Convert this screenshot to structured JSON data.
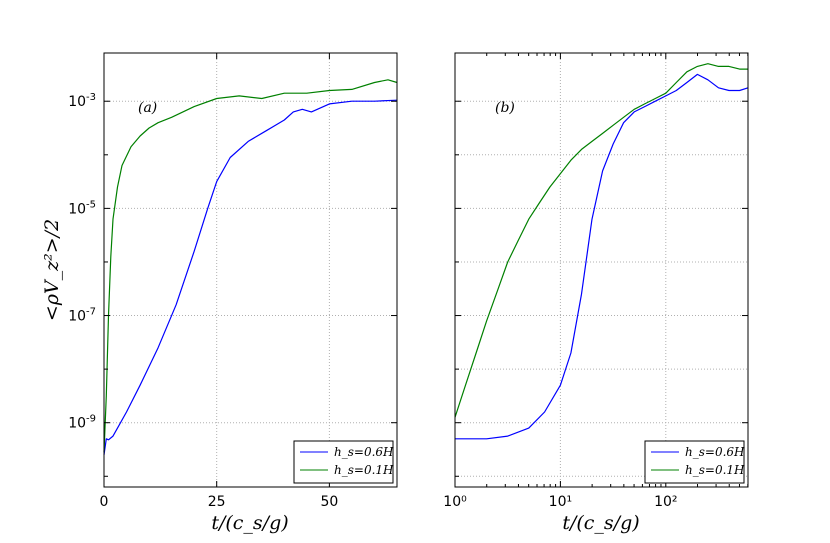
{
  "chart_data": [
    {
      "type": "line",
      "panel_label": "(a)",
      "xscale": "linear",
      "yscale": "log",
      "xlabel": "t/(c_s/g)",
      "ylabel": "<ρV_z²>/2",
      "xlim": [
        0,
        65
      ],
      "ylim_exp": [
        -10.2,
        -2.1
      ],
      "xticks": [
        0,
        25,
        50
      ],
      "xtick_labels": [
        "0",
        "25",
        "50"
      ],
      "yticks_exp": [
        -9,
        -7,
        -5,
        -3
      ],
      "ytick_labels": [
        "10-9",
        "10-7",
        "10-5",
        "10-3"
      ],
      "grid": true,
      "legend_position": "lower-right",
      "series": [
        {
          "name": "h_s=0.6H",
          "color": "#0000ff",
          "x": [
            0,
            0.5,
            1,
            2,
            3,
            5,
            8,
            12,
            16,
            20,
            23,
            25,
            28,
            32,
            36,
            40,
            42,
            44,
            46,
            50,
            55,
            60,
            65
          ],
          "y_exp": [
            -9.6,
            -9.3,
            -9.32,
            -9.25,
            -9.1,
            -8.8,
            -8.3,
            -7.6,
            -6.8,
            -5.8,
            -5.0,
            -4.5,
            -4.05,
            -3.75,
            -3.55,
            -3.35,
            -3.2,
            -3.15,
            -3.2,
            -3.05,
            -3.0,
            -3.0,
            -2.98
          ]
        },
        {
          "name": "h_s=0.1H",
          "color": "#008000",
          "x": [
            0,
            0.5,
            1,
            1.5,
            2,
            3,
            4,
            6,
            8,
            10,
            12,
            15,
            20,
            25,
            30,
            35,
            40,
            45,
            50,
            55,
            60,
            63,
            65
          ],
          "y_exp": [
            -9.55,
            -8.5,
            -7.0,
            -5.9,
            -5.2,
            -4.6,
            -4.2,
            -3.85,
            -3.65,
            -3.5,
            -3.4,
            -3.3,
            -3.1,
            -2.95,
            -2.9,
            -2.95,
            -2.85,
            -2.85,
            -2.8,
            -2.78,
            -2.65,
            -2.6,
            -2.65
          ]
        }
      ]
    },
    {
      "type": "line",
      "panel_label": "(b)",
      "xscale": "log",
      "yscale": "log",
      "xlabel": "t/(c_s/g)",
      "xlim_exp": [
        0,
        2.78
      ],
      "ylim_exp": [
        -10.2,
        -2.1
      ],
      "xticks_exp": [
        0,
        1,
        2
      ],
      "xtick_labels": [
        "10⁰",
        "10¹",
        "10²"
      ],
      "yticks_exp": [
        -9,
        -7,
        -5,
        -3
      ],
      "grid": true,
      "legend_position": "lower-right",
      "series": [
        {
          "name": "h_s=0.6H",
          "color": "#0000ff",
          "x_exp": [
            0,
            0.3,
            0.5,
            0.7,
            0.85,
            1.0,
            1.1,
            1.2,
            1.3,
            1.4,
            1.5,
            1.6,
            1.7,
            1.8,
            1.9,
            2.0,
            2.1,
            2.2,
            2.3,
            2.4,
            2.5,
            2.6,
            2.7,
            2.78
          ],
          "y_exp": [
            -9.3,
            -9.3,
            -9.25,
            -9.1,
            -8.8,
            -8.3,
            -7.7,
            -6.6,
            -5.2,
            -4.3,
            -3.8,
            -3.4,
            -3.2,
            -3.1,
            -3.0,
            -2.9,
            -2.8,
            -2.65,
            -2.5,
            -2.6,
            -2.75,
            -2.8,
            -2.8,
            -2.75
          ]
        },
        {
          "name": "h_s=0.1H",
          "color": "#008000",
          "x_exp": [
            0,
            0.1,
            0.2,
            0.3,
            0.4,
            0.5,
            0.6,
            0.7,
            0.8,
            0.9,
            1.0,
            1.1,
            1.2,
            1.3,
            1.4,
            1.5,
            1.6,
            1.7,
            1.8,
            1.9,
            2.0,
            2.1,
            2.2,
            2.3,
            2.4,
            2.5,
            2.6,
            2.7,
            2.78
          ],
          "y_exp": [
            -8.9,
            -8.3,
            -7.7,
            -7.1,
            -6.55,
            -6.0,
            -5.6,
            -5.2,
            -4.9,
            -4.6,
            -4.35,
            -4.1,
            -3.9,
            -3.75,
            -3.6,
            -3.45,
            -3.3,
            -3.15,
            -3.05,
            -2.95,
            -2.85,
            -2.65,
            -2.45,
            -2.35,
            -2.3,
            -2.35,
            -2.35,
            -2.4,
            -2.4
          ]
        }
      ]
    }
  ]
}
